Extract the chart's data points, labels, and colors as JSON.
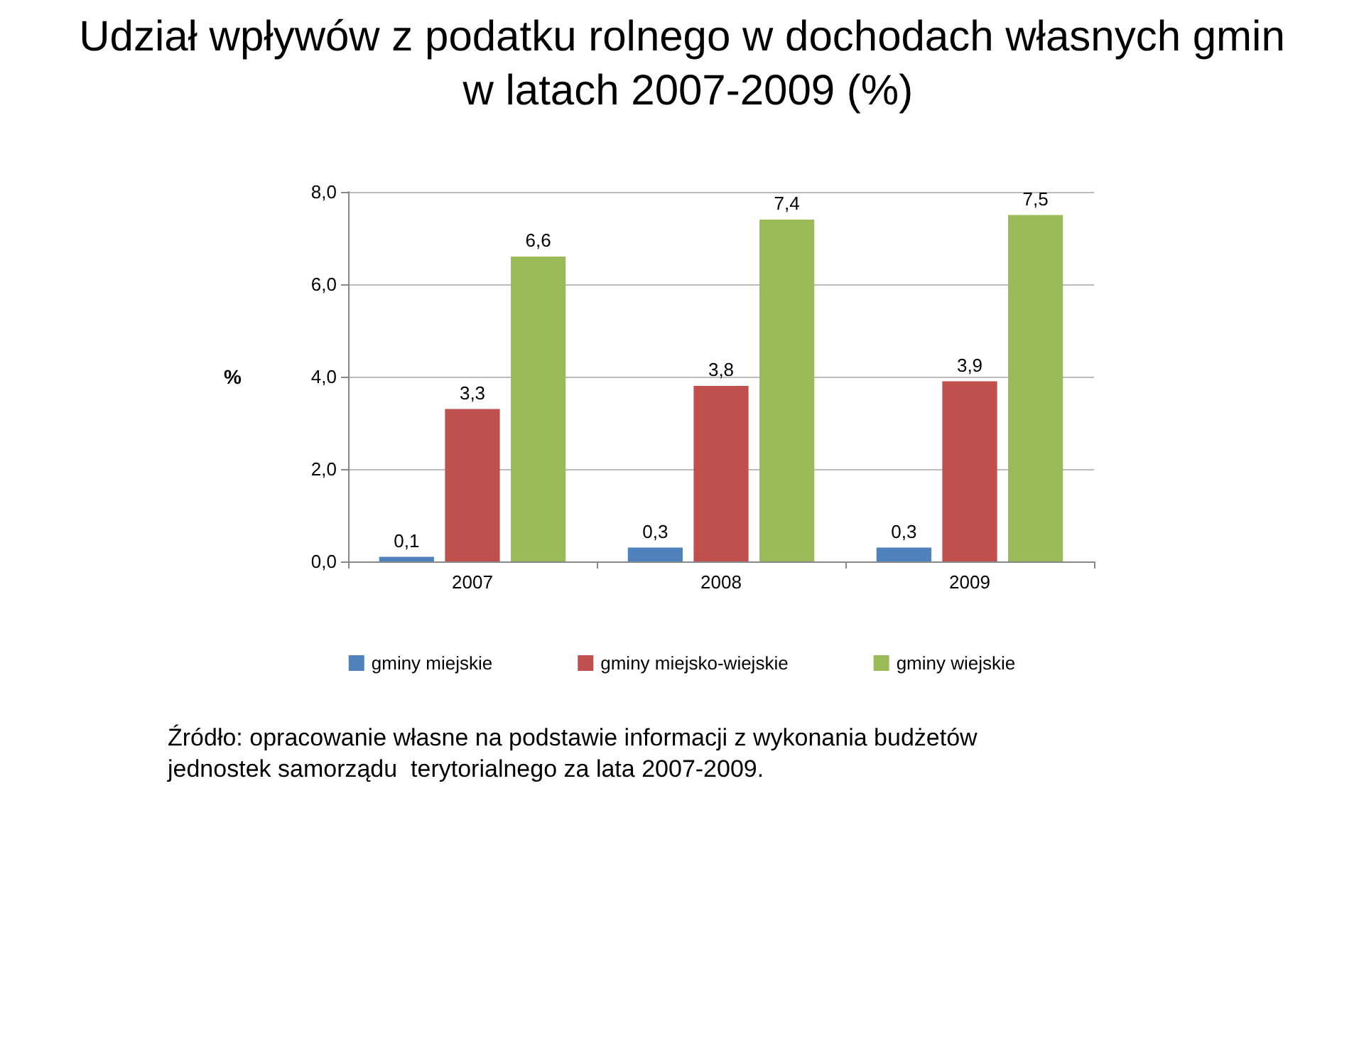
{
  "chart_data": {
    "type": "bar",
    "title": "Udział wpływów z podatku rolnego w dochodach własnych gmin w latach 2007-2009 (%)",
    "ylabel": "%",
    "categories": [
      "2007",
      "2008",
      "2009"
    ],
    "series": [
      {
        "name": "gminy miejskie",
        "color": "#4f81bd",
        "values": [
          0.1,
          0.3,
          0.3
        ],
        "value_labels": [
          "0,1",
          "0,3",
          "0,3"
        ]
      },
      {
        "name": "gminy miejsko-wiejskie",
        "color": "#c0504d",
        "values": [
          3.3,
          3.8,
          3.9
        ],
        "value_labels": [
          "3,3",
          "3,8",
          "3,9"
        ]
      },
      {
        "name": "gminy wiejskie",
        "color": "#9bbb59",
        "values": [
          6.6,
          7.4,
          7.5
        ],
        "value_labels": [
          "6,6",
          "7,4",
          "7,5"
        ]
      }
    ],
    "ylim": [
      0,
      8
    ],
    "yticks": [
      {
        "value": 0,
        "label": "0,0"
      },
      {
        "value": 2,
        "label": "2,0"
      },
      {
        "value": 4,
        "label": "4,0"
      },
      {
        "value": 6,
        "label": "6,0"
      },
      {
        "value": 8,
        "label": "8,0"
      }
    ],
    "grid": "y",
    "legend": "bottom",
    "annotations": [
      "Źródło: opracowanie własne na podstawie informacji z wykonania budżetów jednostek samorządu  terytorialnego za lata 2007-2009."
    ]
  }
}
